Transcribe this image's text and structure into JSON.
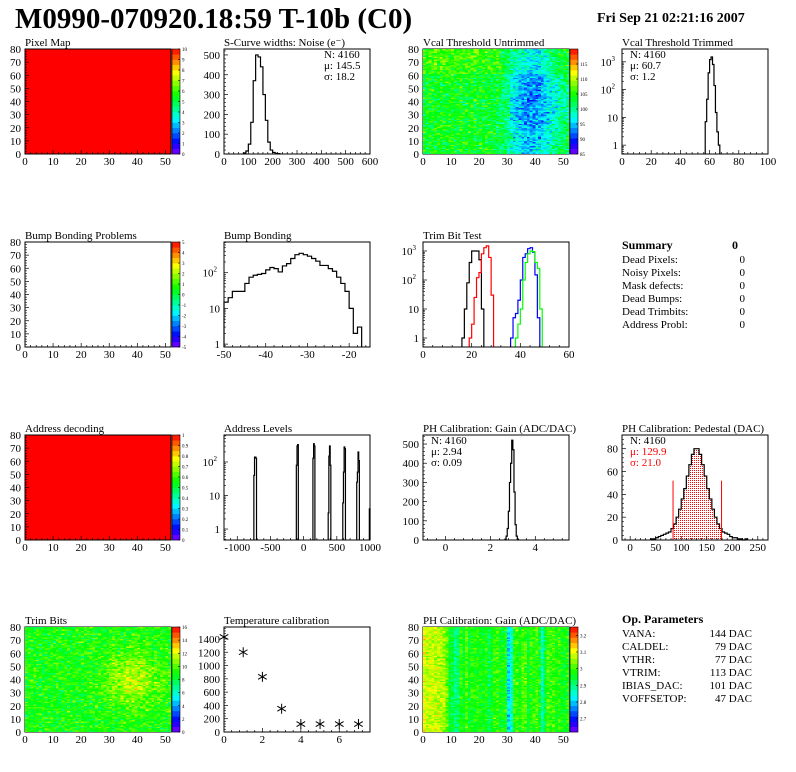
{
  "header": {
    "title": "M0990-070920.18:59 T-10b (C0)",
    "date": "Fri Sep 21 02:21:16 2007"
  },
  "colors": {
    "hist_line": "#000000",
    "stats_red": "#ff0000",
    "palette": "rainbow purple-blue-cyan-green-yellow-red"
  },
  "chart_data": [
    {
      "id": "pixel-map",
      "type": "heatmap",
      "title": "Pixel Map",
      "xlim": [
        0,
        52
      ],
      "ylim": [
        0,
        80
      ],
      "xticks": [
        0,
        10,
        20,
        30,
        40,
        50
      ],
      "yticks": [
        0,
        10,
        20,
        30,
        40,
        50,
        60,
        70,
        80
      ],
      "zlim": [
        0,
        10
      ],
      "zticks": [
        0,
        1,
        2,
        3,
        4,
        5,
        6,
        7,
        8,
        9,
        10
      ],
      "fill_value": 10
    },
    {
      "id": "noise",
      "type": "bar",
      "title": "S-Curve widths: Noise (e⁻)",
      "xlim": [
        0,
        600
      ],
      "ylim": [
        0,
        530
      ],
      "xticks": [
        0,
        100,
        200,
        300,
        400,
        500,
        600
      ],
      "yticks": [
        0,
        100,
        200,
        300,
        400,
        500
      ],
      "stats": [
        "N: 4160",
        "μ: 145.5",
        "σ: 18.2"
      ],
      "stats_corner": "top-right",
      "series": [
        {
          "color": "#000000",
          "x0": 80,
          "bin": 10,
          "values": [
            5,
            15,
            50,
            160,
            370,
            500,
            490,
            440,
            300,
            170,
            60,
            20,
            8,
            3,
            2
          ]
        }
      ]
    },
    {
      "id": "vcal-untrimmed",
      "type": "heatmap",
      "title": "Vcal Threshold Untrimmed",
      "xlim": [
        0,
        52
      ],
      "ylim": [
        0,
        80
      ],
      "xticks": [
        0,
        10,
        20,
        30,
        40,
        50
      ],
      "yticks": [
        0,
        10,
        20,
        30,
        40,
        50,
        60,
        70,
        80
      ],
      "zlim": [
        85,
        120
      ],
      "zticks": [
        85,
        90,
        95,
        100,
        105,
        110,
        115
      ]
    },
    {
      "id": "vcal-trimmed",
      "type": "bar",
      "title": "Vcal Threshold Trimmed",
      "xlim": [
        0,
        100
      ],
      "ylim": [
        0.48,
        2900
      ],
      "ylog": true,
      "xticks": [
        0,
        20,
        40,
        60,
        80,
        100
      ],
      "yticks": [
        1,
        10,
        100,
        1000
      ],
      "stats": [
        "N: 4160",
        "μ: 60.7",
        "σ:  1.2"
      ],
      "stats_corner": "top-left",
      "series": [
        {
          "color": "#000000",
          "x0": 57,
          "bin": 1,
          "values": [
            7,
            45,
            400,
            1200,
            1500,
            800,
            140,
            15,
            3,
            1
          ]
        }
      ]
    },
    {
      "id": "bump-bonding-problems",
      "type": "heatmap",
      "title": "Bump Bonding Problems",
      "xlim": [
        0,
        52
      ],
      "ylim": [
        0,
        80
      ],
      "xticks": [
        0,
        10,
        20,
        30,
        40,
        50
      ],
      "yticks": [
        0,
        10,
        20,
        30,
        40,
        50,
        60,
        70,
        80
      ],
      "zlim": [
        -5,
        5
      ],
      "zticks": [
        -5,
        -4,
        -3,
        -2,
        -1,
        0,
        1,
        2,
        3,
        4,
        5
      ],
      "fill_value": null
    },
    {
      "id": "bump-bonding",
      "type": "bar",
      "title": "Bump Bonding",
      "xlim": [
        -50,
        -15
      ],
      "ylim": [
        0.83,
        725
      ],
      "ylog": true,
      "xticks": [
        -50,
        -40,
        -30,
        -20
      ],
      "yticks": [
        1,
        10,
        100
      ],
      "series": [
        {
          "color": "#000000",
          "x0": -50,
          "bin": 1,
          "values": [
            15,
            20,
            30,
            30,
            30,
            50,
            75,
            85,
            90,
            95,
            120,
            140,
            130,
            105,
            155,
            180,
            250,
            320,
            350,
            320,
            290,
            250,
            210,
            160,
            160,
            130,
            110,
            75,
            50,
            30,
            10,
            2,
            3
          ]
        }
      ]
    },
    {
      "id": "trim-bit-test",
      "type": "bar",
      "title": "Trim Bit Test",
      "xlim": [
        0,
        60
      ],
      "ylim": [
        0.49,
        2040
      ],
      "ylog": true,
      "xticks": [
        0,
        20,
        40,
        60
      ],
      "yticks": [
        1,
        10,
        100,
        1000
      ],
      "series": [
        {
          "color": "#000000",
          "x0": 16,
          "bin": 1,
          "values": [
            1,
            10,
            80,
            400,
            1000,
            1000,
            1000,
            500,
            10
          ]
        },
        {
          "color": "#ff0000",
          "x0": 19,
          "bin": 1,
          "values": [
            1,
            3,
            25,
            120,
            180,
            800,
            1300,
            1500,
            600,
            30
          ]
        },
        {
          "color": "#0000ff",
          "x0": 36,
          "bin": 1,
          "values": [
            1,
            5,
            7,
            20,
            100,
            600,
            800,
            1200,
            1300,
            900,
            150,
            5
          ]
        },
        {
          "color": "#00ff00",
          "x0": 38,
          "bin": 1,
          "values": [
            1,
            3,
            10,
            100,
            400,
            800,
            1000,
            950,
            400,
            250,
            10
          ]
        }
      ]
    },
    {
      "id": "summary",
      "type": "table",
      "title": "Summary",
      "total": "0",
      "rows": [
        {
          "label": "Dead Pixels:",
          "value": "0"
        },
        {
          "label": "Noisy Pixels:",
          "value": "0"
        },
        {
          "label": "Mask defects:",
          "value": "0"
        },
        {
          "label": "Dead Bumps:",
          "value": "0"
        },
        {
          "label": "Dead Trimbits:",
          "value": "0"
        },
        {
          "label": "Address Probl:",
          "value": "0"
        }
      ]
    },
    {
      "id": "address-decoding",
      "type": "heatmap",
      "title": "Address decoding",
      "xlim": [
        0,
        52
      ],
      "ylim": [
        0,
        80
      ],
      "xticks": [
        0,
        10,
        20,
        30,
        40,
        50
      ],
      "yticks": [
        0,
        10,
        20,
        30,
        40,
        50,
        60,
        70,
        80
      ],
      "zlim": [
        0,
        1
      ],
      "zticks": [
        0,
        0.1,
        0.2,
        0.3,
        0.4,
        0.5,
        0.6,
        0.7,
        0.8,
        0.9,
        1
      ],
      "fill_value": 1
    },
    {
      "id": "address-levels",
      "type": "bar",
      "title": "Address Levels",
      "xlim": [
        -1200,
        1000
      ],
      "ylim": [
        0.47,
        640
      ],
      "ylog": true,
      "xticks": [
        -1000,
        -500,
        0,
        500,
        1000
      ],
      "yticks": [
        1,
        10,
        100
      ],
      "series": [
        {
          "color": "#000000",
          "x0": -750,
          "bin": 10,
          "values": [
            40,
            140,
            140,
            130
          ]
        },
        {
          "color": "#000000",
          "x0": -110,
          "bin": 10,
          "values": [
            80,
            300,
            330
          ]
        },
        {
          "color": "#000000",
          "x0": 140,
          "bin": 10,
          "values": [
            130,
            350,
            300
          ]
        },
        {
          "color": "#000000",
          "x0": 370,
          "bin": 10,
          "values": [
            3,
            150,
            300,
            80
          ]
        },
        {
          "color": "#000000",
          "x0": 590,
          "bin": 10,
          "values": [
            6,
            50,
            280,
            250
          ]
        },
        {
          "color": "#000000",
          "x0": 800,
          "bin": 10,
          "values": [
            25,
            50,
            200,
            110
          ]
        },
        {
          "color": "#000000",
          "x0": 990,
          "bin": 10,
          "values": [
            4
          ]
        }
      ]
    },
    {
      "id": "ph-gain",
      "type": "bar",
      "title": "PH Calibration: Gain (ADC/DAC)",
      "xlim": [
        -1,
        5.5
      ],
      "ylim": [
        0,
        547
      ],
      "xticks": [
        0,
        2,
        4
      ],
      "yticks": [
        0,
        100,
        200,
        300,
        400,
        500
      ],
      "stats": [
        "N: 4160",
        "μ: 2.94",
        "σ: 0.09"
      ],
      "stats_corner": "top-left",
      "series": [
        {
          "color": "#000000",
          "x0": 2.65,
          "bin": 0.05,
          "values": [
            5,
            20,
            60,
            150,
            300,
            400,
            520,
            470,
            250,
            80,
            20,
            5
          ]
        }
      ]
    },
    {
      "id": "ph-pedestal",
      "type": "bar",
      "title": "PH Calibration: Pedestal (DAC)",
      "xlim": [
        -16,
        270
      ],
      "ylim": [
        0,
        92
      ],
      "xticks": [
        0,
        50,
        100,
        150,
        200,
        250
      ],
      "yticks": [
        0,
        20,
        40,
        60,
        80
      ],
      "stats": [
        "N: 4160",
        "μ: 129.9",
        "σ: 21.0"
      ],
      "stats_colors": [
        "#000000",
        "#ff0000",
        "#ff0000"
      ],
      "stats_corner": "top-left",
      "fit_range": [
        84,
        179
      ],
      "fit_line_height": 52,
      "series": [
        {
          "color": "#000000",
          "x0": 40,
          "bin": 5,
          "values": [
            1,
            1,
            2,
            3,
            4,
            5,
            6,
            7,
            10,
            14,
            20,
            27,
            36,
            45,
            56,
            66,
            75,
            80,
            80,
            75,
            66,
            56,
            45,
            36,
            27,
            20,
            14,
            10,
            7,
            6,
            5,
            3,
            2,
            2,
            1,
            1,
            0,
            1
          ],
          "fill_in_fit": "#ff0000"
        }
      ]
    },
    {
      "id": "trim-bits",
      "type": "heatmap",
      "title": "Trim Bits",
      "xlim": [
        0,
        52
      ],
      "ylim": [
        0,
        80
      ],
      "xticks": [
        0,
        10,
        20,
        30,
        40,
        50
      ],
      "yticks": [
        0,
        10,
        20,
        30,
        40,
        50,
        60,
        70,
        80
      ],
      "zlim": [
        0,
        16
      ],
      "zticks": [
        0,
        2,
        4,
        6,
        8,
        10,
        12,
        14,
        16
      ]
    },
    {
      "id": "temperature-calibration",
      "type": "scatter",
      "title": "Temperature calibration",
      "xlim": [
        0,
        7.6
      ],
      "ylim": [
        0,
        1580
      ],
      "xticks": [
        0,
        2,
        4,
        6
      ],
      "yticks": [
        0,
        200,
        400,
        600,
        800,
        1000,
        1200,
        1400
      ],
      "x": [
        0,
        1,
        2,
        3,
        4,
        5,
        6,
        7
      ],
      "y": [
        1430,
        1200,
        830,
        350,
        120,
        120,
        120,
        120
      ],
      "marker": "asterisk"
    },
    {
      "id": "ph-gain-map",
      "type": "heatmap",
      "title": "PH Calibration: Gain (ADC/DAC)",
      "xlim": [
        0,
        52
      ],
      "ylim": [
        0,
        80
      ],
      "xticks": [
        0,
        10,
        20,
        30,
        40,
        50
      ],
      "yticks": [
        0,
        10,
        20,
        30,
        40,
        50,
        60,
        70,
        80
      ],
      "zlim": [
        2.62,
        3.25
      ],
      "zticks": [
        2.7,
        2.8,
        2.9,
        3,
        3.1,
        3.2
      ]
    },
    {
      "id": "op-parameters",
      "type": "table",
      "title": "Op. Parameters",
      "rows": [
        {
          "label": "VANA:",
          "value": "144 DAC"
        },
        {
          "label": "CALDEL:",
          "value": "79 DAC"
        },
        {
          "label": "VTHR:",
          "value": "77 DAC"
        },
        {
          "label": "VTRIM:",
          "value": "113 DAC"
        },
        {
          "label": "IBIAS_DAC:",
          "value": "101 DAC"
        },
        {
          "label": "VOFFSETOP:",
          "value": "47 DAC"
        }
      ]
    }
  ]
}
